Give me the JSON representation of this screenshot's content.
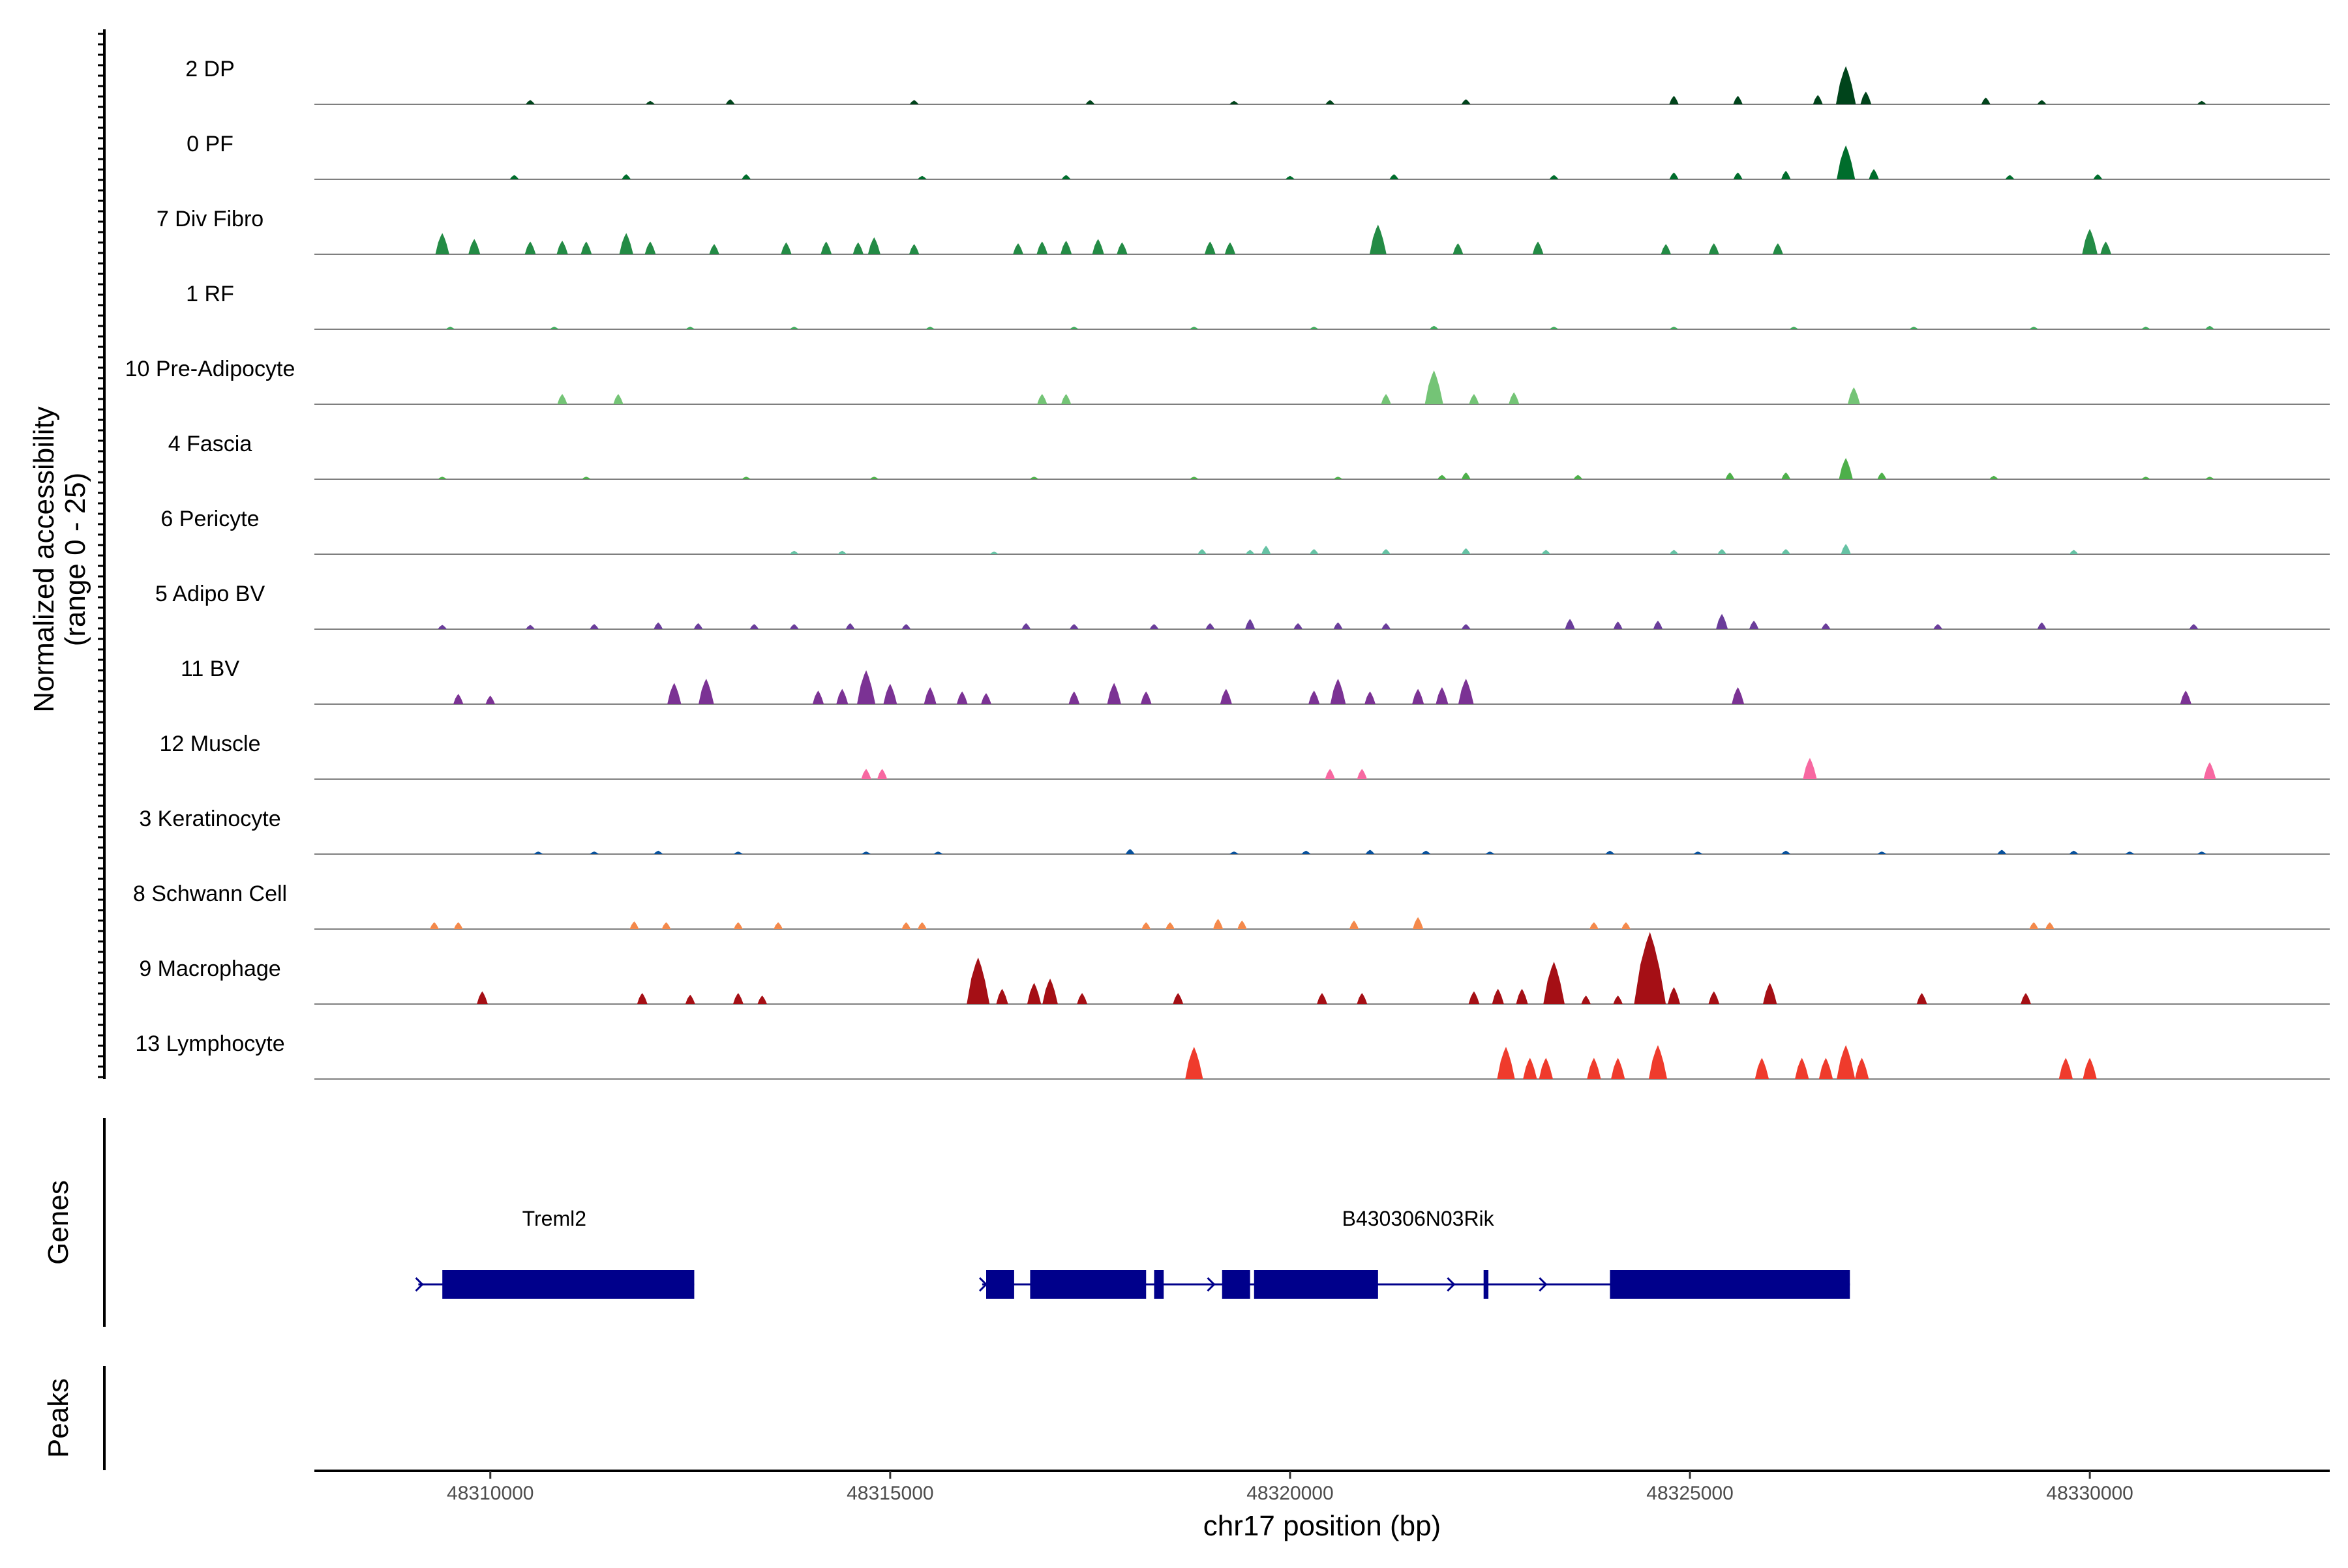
{
  "chart_data": {
    "type": "coverage",
    "chromosome": "chr17",
    "xlabel": "chr17 position (bp)",
    "xlim": [
      48307800,
      48333000
    ],
    "x_ticks": [
      {
        "value": 48310000,
        "label": "48310000"
      },
      {
        "value": 48315000,
        "label": "48315000"
      },
      {
        "value": 48320000,
        "label": "48320000"
      },
      {
        "value": 48325000,
        "label": "48325000"
      },
      {
        "value": 48330000,
        "label": "48330000"
      }
    ],
    "ylabel": "Normalized accessibility\n(range 0 - 25)",
    "ylabel_line1": "Normalized accessibility",
    "ylabel_line2": "(range 0 - 25)",
    "ylim": [
      0,
      25
    ],
    "genes_panel_label": "Genes",
    "peaks_panel_label": "Peaks",
    "tracks": [
      {
        "name": "2 DP",
        "color": "#00441b",
        "peaks": [
          [
            48310500,
            0.5
          ],
          [
            48312000,
            0.4
          ],
          [
            48313000,
            0.6
          ],
          [
            48315300,
            0.5
          ],
          [
            48317500,
            0.5
          ],
          [
            48319300,
            0.4
          ],
          [
            48320500,
            0.5
          ],
          [
            48322200,
            0.6
          ],
          [
            48324800,
            1.0
          ],
          [
            48325600,
            1.0
          ],
          [
            48326600,
            1.1
          ],
          [
            48326950,
            4.5
          ],
          [
            48327200,
            1.5
          ],
          [
            48328700,
            0.8
          ],
          [
            48329400,
            0.5
          ],
          [
            48331400,
            0.4
          ]
        ]
      },
      {
        "name": "0 PF",
        "color": "#006d2c",
        "peaks": [
          [
            48310300,
            0.5
          ],
          [
            48311700,
            0.6
          ],
          [
            48313200,
            0.6
          ],
          [
            48315400,
            0.4
          ],
          [
            48317200,
            0.5
          ],
          [
            48320000,
            0.4
          ],
          [
            48321300,
            0.6
          ],
          [
            48323300,
            0.5
          ],
          [
            48324800,
            0.8
          ],
          [
            48325600,
            0.8
          ],
          [
            48326200,
            1.0
          ],
          [
            48326950,
            4.0
          ],
          [
            48327300,
            1.2
          ],
          [
            48329000,
            0.5
          ],
          [
            48330100,
            0.6
          ]
        ]
      },
      {
        "name": "7 Div Fibro",
        "color": "#238b45",
        "peaks": [
          [
            48309400,
            2.5
          ],
          [
            48309800,
            1.8
          ],
          [
            48310500,
            1.5
          ],
          [
            48310900,
            1.6
          ],
          [
            48311200,
            1.5
          ],
          [
            48311700,
            2.5
          ],
          [
            48312000,
            1.5
          ],
          [
            48312800,
            1.2
          ],
          [
            48313700,
            1.4
          ],
          [
            48314200,
            1.5
          ],
          [
            48314600,
            1.4
          ],
          [
            48314800,
            2.0
          ],
          [
            48315300,
            1.2
          ],
          [
            48316600,
            1.3
          ],
          [
            48316900,
            1.5
          ],
          [
            48317200,
            1.6
          ],
          [
            48317600,
            1.8
          ],
          [
            48317900,
            1.4
          ],
          [
            48319000,
            1.5
          ],
          [
            48319250,
            1.4
          ],
          [
            48321100,
            3.5
          ],
          [
            48322100,
            1.3
          ],
          [
            48323100,
            1.5
          ],
          [
            48324700,
            1.2
          ],
          [
            48325300,
            1.3
          ],
          [
            48326100,
            1.3
          ],
          [
            48330000,
            3.0
          ],
          [
            48330200,
            1.5
          ]
        ]
      },
      {
        "name": "1 RF",
        "color": "#41ab5d",
        "peaks": [
          [
            48309500,
            0.3
          ],
          [
            48310800,
            0.3
          ],
          [
            48312500,
            0.3
          ],
          [
            48313800,
            0.3
          ],
          [
            48315500,
            0.3
          ],
          [
            48317300,
            0.3
          ],
          [
            48318800,
            0.3
          ],
          [
            48320300,
            0.3
          ],
          [
            48321800,
            0.4
          ],
          [
            48323300,
            0.3
          ],
          [
            48324800,
            0.3
          ],
          [
            48326300,
            0.3
          ],
          [
            48327800,
            0.3
          ],
          [
            48329300,
            0.3
          ],
          [
            48330700,
            0.3
          ],
          [
            48331500,
            0.4
          ]
        ]
      },
      {
        "name": "10 Pre-Adipocyte",
        "color": "#74c476",
        "peaks": [
          [
            48310900,
            1.2
          ],
          [
            48311600,
            1.2
          ],
          [
            48316900,
            1.2
          ],
          [
            48317200,
            1.2
          ],
          [
            48321200,
            1.2
          ],
          [
            48321800,
            4.0
          ],
          [
            48322300,
            1.2
          ],
          [
            48322800,
            1.4
          ],
          [
            48327050,
            2.0
          ]
        ]
      },
      {
        "name": "4 Fascia",
        "color": "#4daf4a",
        "peaks": [
          [
            48309400,
            0.3
          ],
          [
            48311200,
            0.3
          ],
          [
            48313200,
            0.3
          ],
          [
            48314800,
            0.3
          ],
          [
            48316800,
            0.3
          ],
          [
            48318800,
            0.3
          ],
          [
            48320600,
            0.3
          ],
          [
            48321900,
            0.5
          ],
          [
            48322200,
            0.8
          ],
          [
            48323600,
            0.5
          ],
          [
            48325500,
            0.8
          ],
          [
            48326200,
            0.8
          ],
          [
            48326950,
            2.5
          ],
          [
            48327400,
            0.8
          ],
          [
            48328800,
            0.4
          ],
          [
            48330700,
            0.3
          ],
          [
            48331500,
            0.3
          ]
        ]
      },
      {
        "name": "6 Pericyte",
        "color": "#66c2a4",
        "peaks": [
          [
            48313800,
            0.4
          ],
          [
            48314400,
            0.4
          ],
          [
            48316300,
            0.3
          ],
          [
            48318900,
            0.6
          ],
          [
            48319500,
            0.5
          ],
          [
            48319700,
            1.0
          ],
          [
            48320300,
            0.6
          ],
          [
            48321200,
            0.6
          ],
          [
            48322200,
            0.7
          ],
          [
            48323200,
            0.5
          ],
          [
            48324800,
            0.5
          ],
          [
            48325400,
            0.6
          ],
          [
            48326200,
            0.6
          ],
          [
            48326950,
            1.2
          ],
          [
            48329800,
            0.5
          ]
        ]
      },
      {
        "name": "5 Adipo BV",
        "color": "#6a3d9a",
        "peaks": [
          [
            48309400,
            0.5
          ],
          [
            48310500,
            0.5
          ],
          [
            48311300,
            0.6
          ],
          [
            48312100,
            0.8
          ],
          [
            48312600,
            0.7
          ],
          [
            48313300,
            0.6
          ],
          [
            48313800,
            0.6
          ],
          [
            48314500,
            0.7
          ],
          [
            48315200,
            0.6
          ],
          [
            48316700,
            0.7
          ],
          [
            48317300,
            0.6
          ],
          [
            48318300,
            0.6
          ],
          [
            48319000,
            0.7
          ],
          [
            48319500,
            1.2
          ],
          [
            48320100,
            0.7
          ],
          [
            48320600,
            0.8
          ],
          [
            48321200,
            0.7
          ],
          [
            48322200,
            0.6
          ],
          [
            48323500,
            1.2
          ],
          [
            48324100,
            0.9
          ],
          [
            48324600,
            1.0
          ],
          [
            48325400,
            1.8
          ],
          [
            48325800,
            1.0
          ],
          [
            48326700,
            0.7
          ],
          [
            48328100,
            0.6
          ],
          [
            48329400,
            0.8
          ],
          [
            48331300,
            0.6
          ]
        ]
      },
      {
        "name": "11 BV",
        "color": "#7b3294",
        "peaks": [
          [
            48309600,
            1.2
          ],
          [
            48310000,
            1.0
          ],
          [
            48312300,
            2.5
          ],
          [
            48312700,
            3.0
          ],
          [
            48314100,
            1.6
          ],
          [
            48314400,
            1.8
          ],
          [
            48314700,
            4.0
          ],
          [
            48315000,
            2.4
          ],
          [
            48315500,
            2.0
          ],
          [
            48315900,
            1.5
          ],
          [
            48316200,
            1.3
          ],
          [
            48317300,
            1.5
          ],
          [
            48317800,
            2.5
          ],
          [
            48318200,
            1.5
          ],
          [
            48319200,
            1.8
          ],
          [
            48320300,
            1.6
          ],
          [
            48320600,
            3.0
          ],
          [
            48321000,
            1.5
          ],
          [
            48321600,
            1.8
          ],
          [
            48321900,
            2.0
          ],
          [
            48322200,
            3.0
          ],
          [
            48325600,
            2.0
          ],
          [
            48331200,
            1.6
          ]
        ]
      },
      {
        "name": "12 Muscle",
        "color": "#f768a1",
        "peaks": [
          [
            48314700,
            1.2
          ],
          [
            48314900,
            1.2
          ],
          [
            48320500,
            1.2
          ],
          [
            48320900,
            1.2
          ],
          [
            48326500,
            2.5
          ],
          [
            48331500,
            2.0
          ]
        ]
      },
      {
        "name": "3 Keratinocyte",
        "color": "#08519c",
        "peaks": [
          [
            48310600,
            0.3
          ],
          [
            48311300,
            0.3
          ],
          [
            48312100,
            0.4
          ],
          [
            48313100,
            0.3
          ],
          [
            48314700,
            0.3
          ],
          [
            48315600,
            0.3
          ],
          [
            48318000,
            0.6
          ],
          [
            48319300,
            0.3
          ],
          [
            48320200,
            0.4
          ],
          [
            48321000,
            0.5
          ],
          [
            48321700,
            0.4
          ],
          [
            48322500,
            0.3
          ],
          [
            48324000,
            0.4
          ],
          [
            48325100,
            0.3
          ],
          [
            48326200,
            0.4
          ],
          [
            48327400,
            0.3
          ],
          [
            48328900,
            0.5
          ],
          [
            48329800,
            0.4
          ],
          [
            48330500,
            0.3
          ],
          [
            48331400,
            0.3
          ]
        ]
      },
      {
        "name": "8 Schwann Cell",
        "color": "#f4894b",
        "peaks": [
          [
            48309300,
            0.8
          ],
          [
            48309600,
            0.8
          ],
          [
            48311800,
            0.9
          ],
          [
            48312200,
            0.8
          ],
          [
            48313100,
            0.8
          ],
          [
            48313600,
            0.8
          ],
          [
            48315200,
            0.8
          ],
          [
            48315400,
            0.8
          ],
          [
            48318200,
            0.8
          ],
          [
            48318500,
            0.8
          ],
          [
            48319100,
            1.2
          ],
          [
            48319400,
            1.0
          ],
          [
            48320800,
            1.0
          ],
          [
            48321600,
            1.4
          ],
          [
            48323800,
            0.8
          ],
          [
            48324200,
            0.8
          ],
          [
            48329300,
            0.8
          ],
          [
            48329500,
            0.8
          ]
        ]
      },
      {
        "name": "9 Macrophage",
        "color": "#a50f15",
        "peaks": [
          [
            48309900,
            1.5
          ],
          [
            48311900,
            1.3
          ],
          [
            48312500,
            1.1
          ],
          [
            48313100,
            1.3
          ],
          [
            48313400,
            1.0
          ],
          [
            48316100,
            5.5
          ],
          [
            48316400,
            1.8
          ],
          [
            48316800,
            2.5
          ],
          [
            48317000,
            3.0
          ],
          [
            48317400,
            1.3
          ],
          [
            48318600,
            1.3
          ],
          [
            48320400,
            1.3
          ],
          [
            48320900,
            1.3
          ],
          [
            48322300,
            1.5
          ],
          [
            48322600,
            1.8
          ],
          [
            48322900,
            1.8
          ],
          [
            48323300,
            5.0
          ],
          [
            48323700,
            1.0
          ],
          [
            48324100,
            1.0
          ],
          [
            48324500,
            8.5
          ],
          [
            48324800,
            2.0
          ],
          [
            48325300,
            1.5
          ],
          [
            48326000,
            2.5
          ],
          [
            48327900,
            1.3
          ],
          [
            48329200,
            1.3
          ]
        ]
      },
      {
        "name": "13 Lymphocyte",
        "color": "#ef3b2c",
        "peaks": [
          [
            48318800,
            3.8
          ],
          [
            48322700,
            3.8
          ],
          [
            48323000,
            2.5
          ],
          [
            48323200,
            2.5
          ],
          [
            48323800,
            2.5
          ],
          [
            48324100,
            2.5
          ],
          [
            48324600,
            4.0
          ],
          [
            48325900,
            2.5
          ],
          [
            48326400,
            2.5
          ],
          [
            48326700,
            2.5
          ],
          [
            48326950,
            4.0
          ],
          [
            48327150,
            2.5
          ],
          [
            48329700,
            2.5
          ],
          [
            48330000,
            2.5
          ]
        ]
      }
    ],
    "genes": [
      {
        "name": "Treml2",
        "label_position": 48310800,
        "strand": "+",
        "start": 48309100,
        "end": 48312550,
        "exons": [
          [
            48309400,
            48312550
          ]
        ],
        "arrows": [
          48309150
        ]
      },
      {
        "name": "B430306N03Rik",
        "label_position": 48321600,
        "strand": "+",
        "start": 48316150,
        "end": 48327000,
        "exons": [
          [
            48316200,
            48316550
          ],
          [
            48316750,
            48318200
          ],
          [
            48318300,
            48318420
          ],
          [
            48319150,
            48319500
          ],
          [
            48319550,
            48321100
          ],
          [
            48322420,
            48322480
          ],
          [
            48324000,
            48327000
          ]
        ],
        "arrows": [
          48316200,
          48319050,
          48322050,
          48323200
        ]
      }
    ]
  }
}
